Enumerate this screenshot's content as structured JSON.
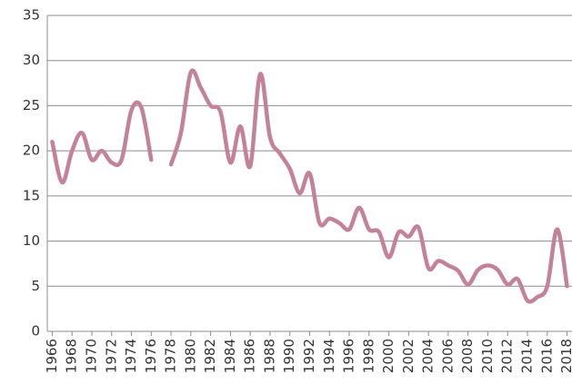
{
  "chart_data": {
    "type": "line",
    "x": [
      1966,
      1967,
      1968,
      1969,
      1970,
      1971,
      1972,
      1973,
      1974,
      1975,
      1976,
      1977,
      1978,
      1979,
      1980,
      1981,
      1982,
      1983,
      1984,
      1985,
      1986,
      1987,
      1988,
      1989,
      1990,
      1991,
      1992,
      1993,
      1994,
      1995,
      1996,
      1997,
      1998,
      1999,
      2000,
      2001,
      2002,
      2003,
      2004,
      2005,
      2006,
      2007,
      2008,
      2009,
      2010,
      2011,
      2012,
      2013,
      2014,
      2015,
      2016,
      2017,
      2018
    ],
    "values": [
      21,
      16.5,
      20,
      22,
      19,
      20,
      18.7,
      19,
      24.5,
      24.8,
      19,
      null,
      18.5,
      22,
      28.7,
      27,
      25,
      24.3,
      18.7,
      22.7,
      18.3,
      28.5,
      21.5,
      19.7,
      18,
      15.3,
      17.5,
      12,
      12.5,
      12,
      11.3,
      13.7,
      11.3,
      11,
      8.2,
      11,
      10.5,
      11.5,
      7,
      7.8,
      7.3,
      6.7,
      5.2,
      6.8,
      7.3,
      6.8,
      5.2,
      5.8,
      3.4,
      3.8,
      5,
      11.3,
      5
    ],
    "color": "#c4819a",
    "xlim": [
      1965.5,
      2018.5
    ],
    "xticks": [
      1966,
      1968,
      1970,
      1972,
      1974,
      1976,
      1978,
      1980,
      1982,
      1984,
      1986,
      1988,
      1990,
      1992,
      1994,
      1996,
      1998,
      2000,
      2002,
      2004,
      2006,
      2008,
      2010,
      2012,
      2014,
      2016,
      2018
    ],
    "ylim": [
      0,
      35
    ],
    "yticks": [
      0,
      5,
      10,
      15,
      20,
      25,
      30,
      35
    ],
    "grid": true
  }
}
